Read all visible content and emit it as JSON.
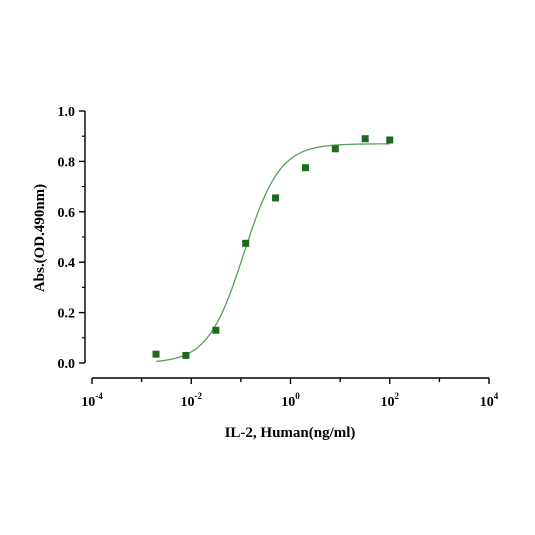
{
  "chart_data": {
    "type": "scatter",
    "title": "",
    "xlabel": "IL-2, Human(ng/ml)",
    "ylabel": "Abs.(OD.490nm)",
    "x_scale": "log10",
    "xlim": [
      0.0001,
      10000
    ],
    "ylim": [
      0.0,
      1.0
    ],
    "x_ticks": [
      {
        "base": "10",
        "exp": "-4"
      },
      {
        "base": "10",
        "exp": "-2"
      },
      {
        "base": "10",
        "exp": "0"
      },
      {
        "base": "10",
        "exp": "2"
      },
      {
        "base": "10",
        "exp": "4"
      }
    ],
    "y_ticks": [
      "0.0",
      "0.2",
      "0.4",
      "0.6",
      "0.8",
      "1.0"
    ],
    "grid": false,
    "legend": "none",
    "series": [
      {
        "marker": "square",
        "color": "#1e6b1e",
        "points": [
          {
            "x": 0.00195,
            "y": 0.035
          },
          {
            "x": 0.0078,
            "y": 0.03
          },
          {
            "x": 0.0313,
            "y": 0.13
          },
          {
            "x": 0.125,
            "y": 0.475
          },
          {
            "x": 0.5,
            "y": 0.655
          },
          {
            "x": 2.0,
            "y": 0.775
          },
          {
            "x": 8.0,
            "y": 0.85
          },
          {
            "x": 32.0,
            "y": 0.89
          },
          {
            "x": 100.0,
            "y": 0.885
          }
        ]
      }
    ],
    "fit_curve": {
      "model": "4PL",
      "color": "#5a9e5a",
      "bottom": 0.0,
      "top": 0.87,
      "ec50": 0.115,
      "hill": 1.2,
      "x_range": [
        0.00195,
        100.0
      ]
    }
  }
}
